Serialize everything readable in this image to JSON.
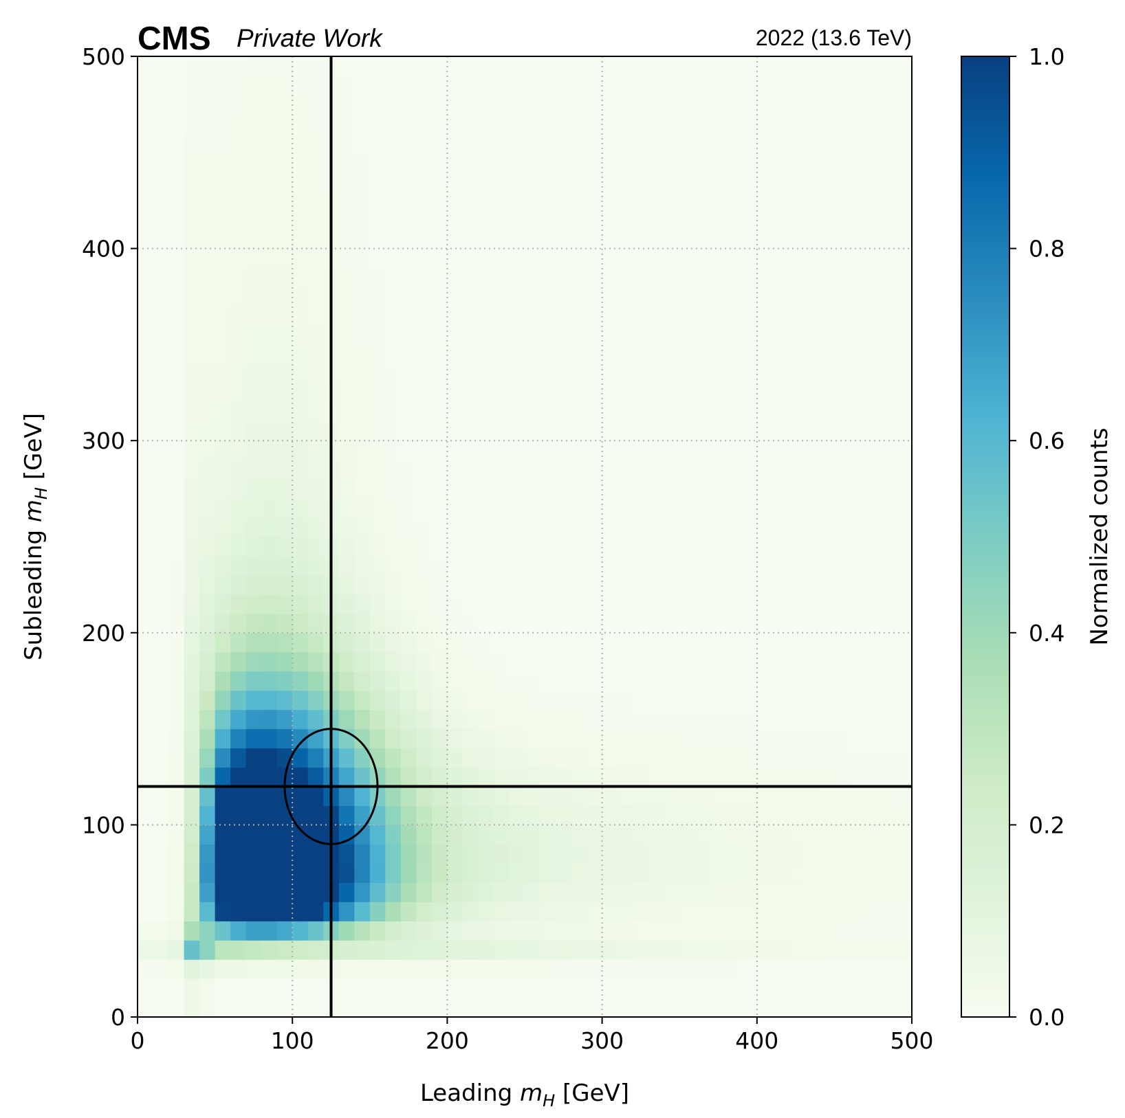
{
  "header": {
    "experiment": "CMS",
    "status": "Private Work",
    "lumi": "2022 (13.6 TeV)"
  },
  "chart_data": {
    "type": "heatmap",
    "title": "",
    "xlabel_prefix": "Leading ",
    "xlabel_var": "m",
    "xlabel_sub": "H",
    "xlabel_suffix": " [GeV]",
    "ylabel_prefix": "Subleading ",
    "ylabel_var": "m",
    "ylabel_sub": "H",
    "ylabel_suffix": " [GeV]",
    "xlim": [
      0,
      500
    ],
    "ylim": [
      0,
      500
    ],
    "xticks": [
      0,
      100,
      200,
      300,
      400,
      500
    ],
    "yticks": [
      0,
      100,
      200,
      300,
      400,
      500
    ],
    "bin_width": 10,
    "grid": true,
    "grid_style": "dotted",
    "colormap": "GnBu",
    "colorbar": {
      "label": "Normalized counts",
      "range": [
        0,
        1
      ],
      "ticks": [
        "0.0",
        "0.2",
        "0.4",
        "0.6",
        "0.8",
        "1.0"
      ]
    },
    "signal_region": {
      "vertical_line_x": 125,
      "horizontal_line_y": 120,
      "ellipse_center": [
        125,
        120
      ],
      "ellipse_radii": [
        30,
        30
      ]
    },
    "distribution": {
      "description_peak": [
        75,
        72
      ],
      "x_threshold": 40,
      "y_threshold": 40
    }
  }
}
